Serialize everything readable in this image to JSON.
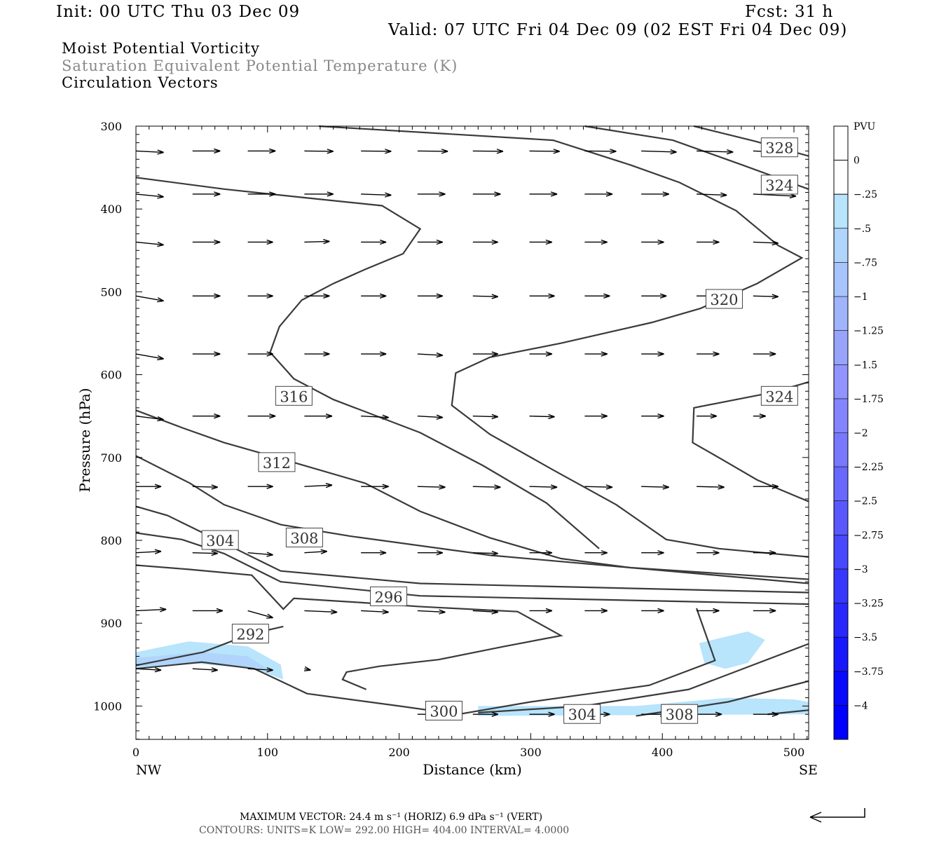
{
  "header": {
    "init": "Init: 00 UTC Thu 03 Dec 09",
    "fcst": "Fcst:   31 h",
    "valid": "Valid: 07 UTC Fri 04 Dec 09 (02 EST Fri 04 Dec 09)",
    "field1": "Moist Potential Vorticity",
    "field2": "Saturation Equivalent Potential Temperature (K)",
    "field3": "Circulation Vectors"
  },
  "footer": {
    "max_vector": "MAXIMUM VECTOR:  24.4 m s⁻¹ (HORIZ)          6.9 dPa s⁻¹ (VERT)",
    "contours": "CONTOURS:  UNITS=K  LOW=  292.00      HIGH=  404.00       INTERVAL=    4.0000"
  },
  "chart_data": {
    "type": "cross-section",
    "xlabel": "Distance (km)",
    "ylabel": "Pressure (hPa)",
    "xlim": [
      0,
      511
    ],
    "ylim": [
      1040,
      300
    ],
    "xticks": [
      0,
      100,
      200,
      300,
      400,
      500
    ],
    "yticks": [
      300,
      400,
      500,
      600,
      700,
      800,
      900,
      1000
    ],
    "x_endpoints": {
      "left": "NW",
      "right": "SE"
    },
    "colorbar": {
      "title": "PVU",
      "labels": [
        "0",
        "-.25",
        "-.5",
        "-.75",
        "-1",
        "-1.25",
        "-1.5",
        "-1.75",
        "-2",
        "-2.25",
        "-2.5",
        "-2.75",
        "-3",
        "-3.25",
        "-3.5",
        "-3.75",
        "-4"
      ],
      "colors": [
        "#ffffff",
        "#ffffff",
        "#b8e4fc",
        "#b0d4fc",
        "#a8c4fc",
        "#a0b4fc",
        "#98a4fc",
        "#9094fc",
        "#8484fc",
        "#7878fc",
        "#6868fc",
        "#5858fc",
        "#4848fc",
        "#3838fc",
        "#2828fc",
        "#1818fc",
        "#0808fc",
        "#0000ff"
      ]
    },
    "pv_regions": [
      {
        "pvu": -0.25,
        "points": [
          [
            0,
            935
          ],
          [
            40,
            922
          ],
          [
            85,
            928
          ],
          [
            110,
            950
          ],
          [
            112,
            968
          ],
          [
            90,
            955
          ],
          [
            40,
            948
          ],
          [
            0,
            955
          ]
        ]
      },
      {
        "pvu": -0.5,
        "points": [
          [
            0,
            942
          ],
          [
            50,
            935
          ],
          [
            85,
            940
          ],
          [
            100,
            955
          ],
          [
            50,
            948
          ],
          [
            0,
            952
          ]
        ]
      },
      {
        "pvu": -0.25,
        "points": [
          [
            428,
            924
          ],
          [
            465,
            910
          ],
          [
            478,
            920
          ],
          [
            465,
            948
          ],
          [
            448,
            955
          ],
          [
            432,
            948
          ]
        ]
      },
      {
        "pvu": -0.25,
        "points": [
          [
            260,
            1000
          ],
          [
            380,
            1000
          ],
          [
            450,
            990
          ],
          [
            500,
            992
          ],
          [
            511,
            995
          ],
          [
            511,
            1010
          ],
          [
            260,
            1012
          ]
        ]
      }
    ],
    "contours": [
      {
        "level": 328,
        "label_at": [
          489,
          326
        ],
        "points": [
          [
            424,
            300
          ],
          [
            470,
            318
          ],
          [
            511,
            336
          ]
        ]
      },
      {
        "level": 324,
        "label_at": [
          489,
          371
        ],
        "points": [
          [
            341,
            300
          ],
          [
            408,
            317
          ],
          [
            461,
            347
          ],
          [
            511,
            376
          ]
        ]
      },
      {
        "level": 320,
        "label_at": [
          447,
          509
        ],
        "points": [
          [
            139,
            300
          ],
          [
            317,
            317
          ],
          [
            376,
            347
          ],
          [
            413,
            368
          ],
          [
            456,
            402
          ],
          [
            488,
            444
          ],
          [
            506,
            459
          ],
          [
            472,
            490
          ],
          [
            429,
            520
          ],
          [
            392,
            537
          ],
          [
            323,
            562
          ],
          [
            269,
            579
          ],
          [
            243,
            598
          ],
          [
            240,
            637
          ],
          [
            269,
            672
          ],
          [
            317,
            715
          ],
          [
            365,
            757
          ],
          [
            403,
            799
          ],
          [
            443,
            810
          ],
          [
            511,
            820
          ]
        ]
      },
      {
        "level": 324,
        "label_at": [
          489,
          626
        ],
        "points": [
          [
            511,
            609
          ],
          [
            482,
            622
          ],
          [
            424,
            640
          ],
          [
            423,
            682
          ],
          [
            445,
            702
          ],
          [
            472,
            727
          ],
          [
            511,
            753
          ]
        ]
      },
      {
        "level": 316,
        "label_at": [
          120,
          626
        ],
        "points": [
          [
            0,
            362
          ],
          [
            67,
            376
          ],
          [
            126,
            386
          ],
          [
            187,
            396
          ],
          [
            216,
            424
          ],
          [
            203,
            454
          ],
          [
            174,
            473
          ],
          [
            150,
            490
          ],
          [
            126,
            510
          ],
          [
            109,
            542
          ],
          [
            102,
            573
          ],
          [
            120,
            605
          ],
          [
            150,
            630
          ],
          [
            216,
            670
          ],
          [
            264,
            710
          ],
          [
            312,
            755
          ],
          [
            352,
            810
          ]
        ]
      },
      {
        "level": 312,
        "label_at": [
          107,
          706
        ],
        "points": [
          [
            0,
            643
          ],
          [
            35,
            664
          ],
          [
            67,
            682
          ],
          [
            120,
            706
          ],
          [
            174,
            731
          ],
          [
            216,
            765
          ],
          [
            269,
            797
          ],
          [
            323,
            822
          ],
          [
            376,
            833
          ],
          [
            511,
            847
          ]
        ]
      },
      {
        "level": 308,
        "label_at": [
          128,
          797
        ],
        "points": [
          [
            0,
            698
          ],
          [
            41,
            731
          ],
          [
            67,
            757
          ],
          [
            110,
            781
          ],
          [
            163,
            795
          ],
          [
            269,
            818
          ],
          [
            511,
            852
          ]
        ]
      },
      {
        "level": 304,
        "label_at": [
          64,
          800
        ],
        "points": [
          [
            0,
            759
          ],
          [
            24,
            770
          ],
          [
            51,
            791
          ],
          [
            78,
            812
          ],
          [
            110,
            837
          ],
          [
            216,
            852
          ],
          [
            511,
            863
          ]
        ]
      },
      {
        "level": 300,
        "label_at": [
          234,
          1006
        ],
        "points": [
          [
            0,
            791
          ],
          [
            35,
            799
          ],
          [
            67,
            816
          ],
          [
            110,
            850
          ],
          [
            216,
            867
          ],
          [
            511,
            877
          ]
        ]
      },
      {
        "level": 296,
        "label_at": [
          192,
          868
        ],
        "points": [
          [
            0,
            830
          ],
          [
            40,
            835
          ],
          [
            88,
            842
          ],
          [
            112,
            883
          ],
          [
            120,
            870
          ],
          [
            170,
            875
          ],
          [
            216,
            880
          ],
          [
            290,
            886
          ],
          [
            323,
            915
          ],
          [
            280,
            928
          ],
          [
            230,
            944
          ],
          [
            185,
            952
          ],
          [
            160,
            959
          ],
          [
            157,
            968
          ],
          [
            175,
            980
          ]
        ]
      },
      {
        "level": 292,
        "label_at": [
          87,
          913
        ],
        "points": [
          [
            0,
            951
          ],
          [
            51,
            935
          ],
          [
            87,
            913
          ],
          [
            112,
            904
          ]
        ]
      },
      {
        "level": 300,
        "label_at": [
          234,
          1006
        ],
        "points": [
          [
            0,
            955
          ],
          [
            50,
            947
          ],
          [
            90,
            955
          ],
          [
            130,
            985
          ],
          [
            200,
            1000
          ],
          [
            245,
            1010
          ],
          [
            300,
            995
          ],
          [
            390,
            975
          ],
          [
            440,
            945
          ],
          [
            426,
            882
          ]
        ]
      },
      {
        "level": 304,
        "label_at": [
          339,
          1010
        ],
        "points": [
          [
            260,
            1008
          ],
          [
            340,
            1000
          ],
          [
            420,
            980
          ],
          [
            511,
            925
          ]
        ]
      },
      {
        "level": 308,
        "label_at": [
          413,
          1010
        ],
        "points": [
          [
            380,
            1012
          ],
          [
            450,
            995
          ],
          [
            511,
            970
          ]
        ]
      },
      {
        "level": 312,
        "points": [
          [
            480,
            1010
          ],
          [
            511,
            1005
          ]
        ]
      }
    ],
    "vectors": {
      "note": "circulation vectors (u in km-scale units, w in hPa-scale units)",
      "rows": [
        {
          "p": 330,
          "x": [
            0,
            43,
            85,
            128,
            171,
            214,
            256,
            299,
            341,
            384,
            426,
            469
          ],
          "u": [
            22,
            22,
            22,
            23,
            24,
            24,
            24,
            24,
            25,
            28,
            29,
            34
          ],
          "w": [
            4,
            0,
            0,
            1,
            1,
            1,
            1,
            1,
            1,
            3,
            3,
            5
          ]
        },
        {
          "p": 382,
          "x": [
            0,
            43,
            85,
            128,
            171,
            214,
            256,
            299,
            341,
            384,
            426,
            469
          ],
          "u": [
            22,
            22,
            22,
            23,
            24,
            22,
            22,
            22,
            22,
            22,
            24,
            34
          ],
          "w": [
            8,
            0,
            0,
            0,
            3,
            0,
            0,
            0,
            0,
            0,
            3,
            6
          ]
        },
        {
          "p": 440,
          "x": [
            0,
            43,
            85,
            128,
            171,
            214,
            256,
            299,
            341,
            384,
            426,
            469
          ],
          "u": [
            22,
            22,
            20,
            20,
            20,
            20,
            20,
            18,
            18,
            18,
            18,
            20
          ],
          "w": [
            8,
            0,
            0,
            -2,
            0,
            0,
            0,
            0,
            0,
            0,
            0,
            3
          ]
        },
        {
          "p": 505,
          "x": [
            0,
            43,
            85,
            128,
            171,
            214,
            256,
            299,
            341,
            384,
            426,
            469
          ],
          "u": [
            22,
            22,
            20,
            20,
            20,
            20,
            20,
            20,
            20,
            20,
            20,
            20
          ],
          "w": [
            14,
            0,
            0,
            0,
            0,
            0,
            2,
            0,
            0,
            0,
            0,
            2
          ]
        },
        {
          "p": 575,
          "x": [
            0,
            43,
            85,
            128,
            171,
            214,
            256,
            299,
            341,
            384,
            426,
            469
          ],
          "u": [
            22,
            22,
            20,
            20,
            20,
            20,
            20,
            18,
            18,
            18,
            18,
            18
          ],
          "w": [
            14,
            0,
            0,
            0,
            0,
            4,
            0,
            0,
            0,
            0,
            0,
            0
          ]
        },
        {
          "p": 650,
          "x": [
            0,
            43,
            85,
            128,
            171,
            214,
            256,
            299,
            341,
            384,
            426,
            469
          ],
          "u": [
            22,
            22,
            22,
            22,
            22,
            20,
            20,
            20,
            18,
            18,
            16,
            10
          ],
          "w": [
            10,
            0,
            0,
            0,
            4,
            4,
            2,
            2,
            0,
            0,
            0,
            0
          ]
        },
        {
          "p": 735,
          "x": [
            0,
            43,
            85,
            128,
            171,
            214,
            256,
            299,
            341,
            384,
            426,
            469
          ],
          "u": [
            20,
            20,
            20,
            22,
            22,
            22,
            22,
            22,
            22,
            22,
            22,
            20
          ],
          "w": [
            0,
            2,
            0,
            -4,
            0,
            2,
            2,
            2,
            2,
            2,
            2,
            0
          ]
        },
        {
          "p": 815,
          "x": [
            0,
            43,
            85,
            128,
            171,
            214,
            256,
            299,
            341,
            384,
            426,
            469
          ],
          "u": [
            20,
            20,
            20,
            18,
            20,
            20,
            20,
            18,
            18,
            18,
            18,
            18
          ],
          "w": [
            -4,
            2,
            6,
            -4,
            0,
            0,
            2,
            0,
            0,
            0,
            0,
            0
          ]
        },
        {
          "p": 885,
          "x": [
            0,
            43,
            85,
            128,
            171,
            214,
            256,
            299,
            341,
            384,
            426,
            469
          ],
          "u": [
            24,
            24,
            20,
            26,
            22,
            22,
            20,
            18,
            18,
            18,
            18,
            18
          ],
          "w": [
            -4,
            0,
            20,
            4,
            4,
            4,
            4,
            0,
            0,
            0,
            0,
            0
          ]
        },
        {
          "p": 955,
          "x": [
            0,
            43,
            85,
            128,
            171,
            214,
            256,
            299,
            341,
            384,
            426,
            469
          ],
          "u": [
            20,
            20,
            20,
            5,
            0,
            0,
            0,
            0,
            0,
            0,
            0,
            0
          ],
          "w": [
            4,
            4,
            4,
            4,
            0,
            0,
            0,
            0,
            0,
            0,
            0,
            0
          ]
        },
        {
          "p": 1010,
          "x": [
            214,
            256,
            299,
            341,
            384,
            426,
            469
          ],
          "u": [
            20,
            20,
            20,
            20,
            20,
            20,
            20
          ],
          "w": [
            0,
            0,
            0,
            0,
            0,
            0,
            0
          ]
        }
      ]
    }
  }
}
